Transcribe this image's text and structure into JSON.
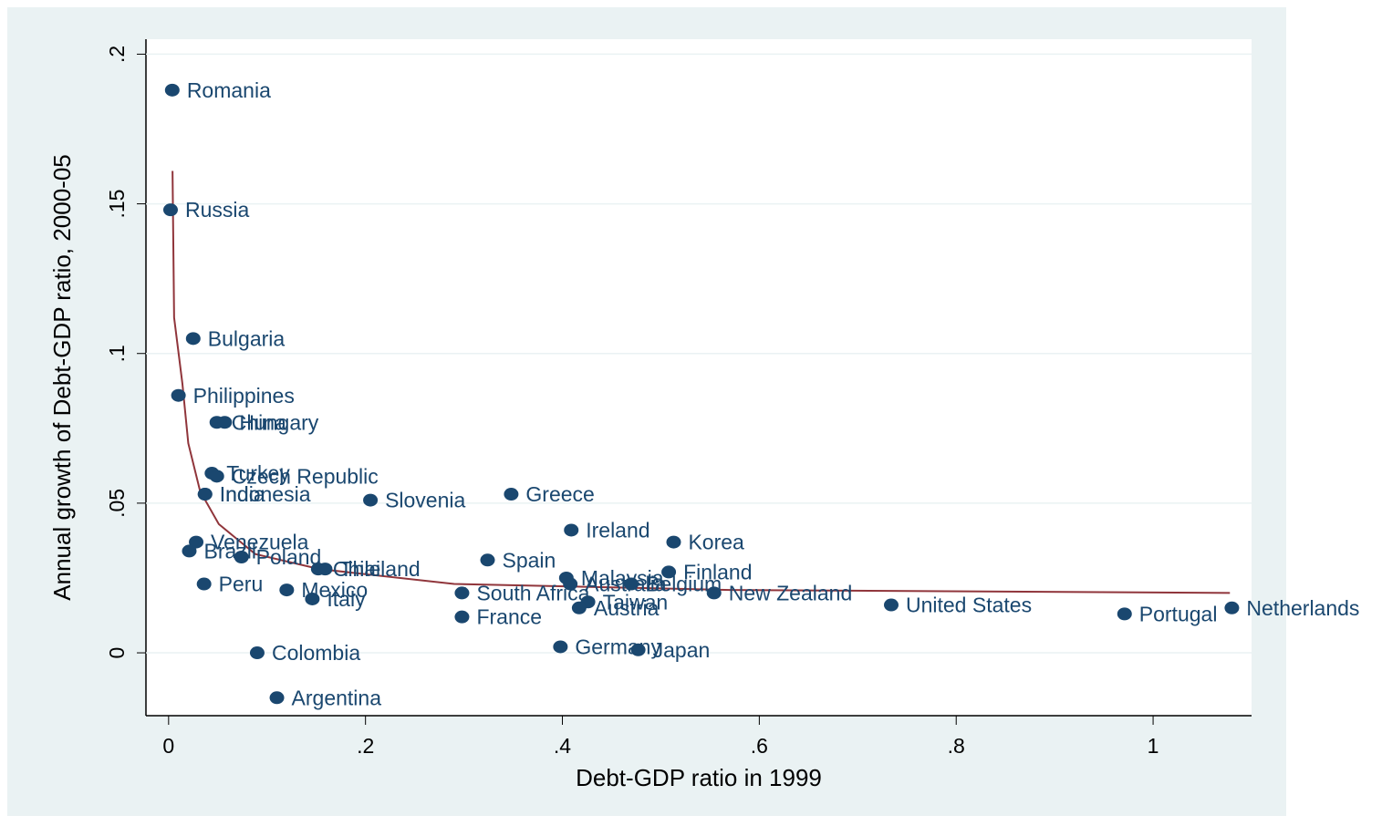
{
  "chart_data": {
    "type": "scatter",
    "xlabel": "Debt-GDP ratio in 1999",
    "ylabel": "Annual growth of Debt-GDP ratio, 2000-05",
    "xlim": [
      -0.023,
      1.1
    ],
    "ylim": [
      -0.021,
      0.205
    ],
    "xticks": [
      0,
      {
        "value": 0.2,
        "label": ".2"
      },
      {
        "value": 0.4,
        "label": ".4"
      },
      {
        "value": 0.6,
        "label": ".6"
      },
      {
        "value": 0.8,
        "label": ".8"
      },
      1
    ],
    "yticks": [
      0,
      {
        "value": 0.05,
        "label": ".05"
      },
      {
        "value": 0.1,
        "label": ".1"
      },
      {
        "value": 0.15,
        "label": ".15"
      },
      {
        "value": 0.2,
        "label": ".2"
      }
    ],
    "grid": true,
    "points": {
      "color": "#1a476f",
      "labels": [
        "Romania",
        "Russia",
        "Bulgaria",
        "Philippines",
        "China",
        "Hungary",
        "Turkey",
        "Czech Republic",
        "India",
        "Indonesia",
        "Slovenia",
        "Greece",
        "Ireland",
        "Korea",
        "Venezuela",
        "Brazil",
        "Poland",
        "Spain",
        "Chile",
        "Thailand",
        "Finland",
        "Malaysia",
        "Australia",
        "Belgium",
        "Peru",
        "Mexico",
        "Italy",
        "South Africa",
        "New Zealand",
        "Taiwan",
        "Austria",
        "United States",
        "Portugal",
        "Netherlands",
        "France",
        "Germany",
        "Japan",
        "Colombia",
        "Argentina"
      ],
      "x": [
        0.0037,
        0.002,
        0.025,
        0.01,
        0.049,
        0.057,
        0.044,
        0.049,
        0.037,
        0.037,
        0.205,
        0.348,
        0.409,
        0.513,
        0.028,
        0.021,
        0.074,
        0.324,
        0.152,
        0.159,
        0.508,
        0.404,
        0.408,
        0.47,
        0.036,
        0.12,
        0.146,
        0.298,
        0.554,
        0.426,
        0.417,
        0.734,
        0.971,
        1.08,
        0.298,
        0.398,
        0.477,
        0.09,
        0.11
      ],
      "values": [
        0.188,
        0.148,
        0.105,
        0.086,
        0.077,
        0.077,
        0.06,
        0.059,
        0.053,
        0.053,
        0.051,
        0.053,
        0.041,
        0.037,
        0.037,
        0.034,
        0.032,
        0.031,
        0.028,
        0.028,
        0.027,
        0.025,
        0.023,
        0.023,
        0.023,
        0.021,
        0.018,
        0.02,
        0.02,
        0.017,
        0.015,
        0.016,
        0.013,
        0.015,
        0.012,
        0.002,
        0.001,
        0.0,
        -0.015
      ]
    },
    "fit": {
      "color": "#90353b",
      "x": [
        0.004,
        0.0056,
        0.014,
        0.02,
        0.032,
        0.051,
        0.088,
        0.153,
        0.29,
        0.57,
        1.078
      ],
      "values": [
        0.161,
        0.112,
        0.09,
        0.07,
        0.054,
        0.043,
        0.033,
        0.028,
        0.023,
        0.021,
        0.02
      ]
    }
  }
}
